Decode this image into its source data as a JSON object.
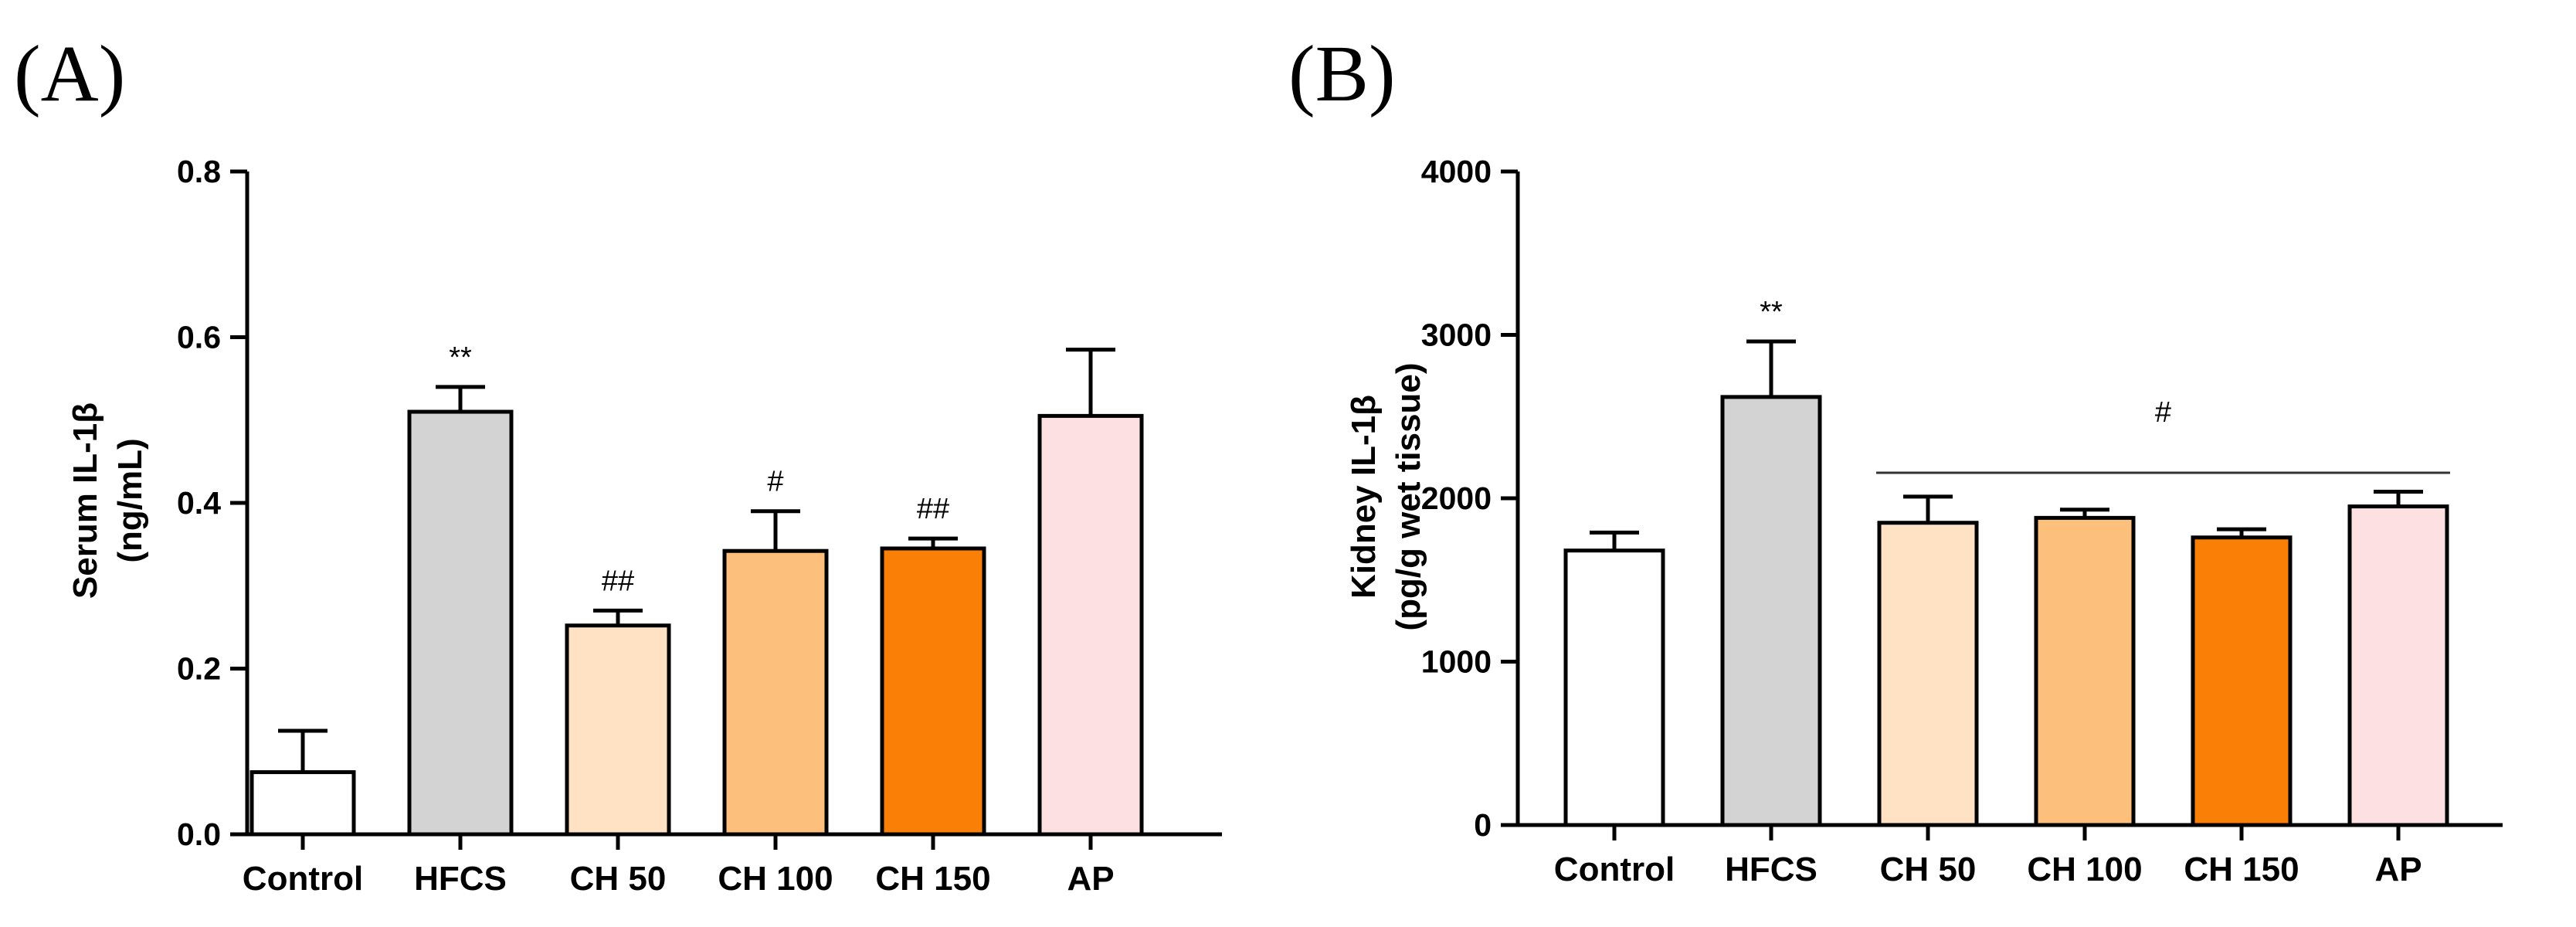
{
  "chart_data": [
    {
      "type": "bar",
      "panel_label": "(A)",
      "ylabel_line1": "Serum IL-1β",
      "ylabel_line2": "(ng/mL)",
      "ylim": [
        0,
        0.8
      ],
      "yticks": [
        "0.0",
        "0.2",
        "0.4",
        "0.6",
        "0.8"
      ],
      "categories": [
        "Control",
        "HFCS",
        "CH 50",
        "CH 100",
        "CH 150",
        "AP"
      ],
      "values": [
        0.075,
        0.51,
        0.252,
        0.342,
        0.345,
        0.505
      ],
      "errors": [
        0.05,
        0.03,
        0.018,
        0.048,
        0.012,
        0.08
      ],
      "colors": [
        "#ffffff",
        "#d3d3d3",
        "#ffe1c4",
        "#fcc07c",
        "#fa7f06",
        "#fde0e2"
      ],
      "annotations": [
        "",
        "**",
        "##",
        "#",
        "##",
        ""
      ]
    },
    {
      "type": "bar",
      "panel_label": "(B)",
      "ylabel_line1": "Kidney IL-1β",
      "ylabel_line2": "(pg/g wet tissue)",
      "ylim": [
        0,
        4000
      ],
      "yticks": [
        "0",
        "1000",
        "2000",
        "3000",
        "4000"
      ],
      "categories": [
        "Control",
        "HFCS",
        "CH 50",
        "CH 100",
        "CH 150",
        "AP"
      ],
      "values": [
        1680,
        2620,
        1850,
        1880,
        1760,
        1950
      ],
      "errors": [
        110,
        340,
        160,
        50,
        50,
        90
      ],
      "colors": [
        "#ffffff",
        "#d3d3d3",
        "#ffe1c4",
        "#fcc07c",
        "#fa7f06",
        "#fde0e2"
      ],
      "annotations": [
        "",
        "**",
        "",
        "",
        "",
        ""
      ],
      "group_annotation": "#",
      "group_span": [
        2,
        5
      ]
    }
  ]
}
